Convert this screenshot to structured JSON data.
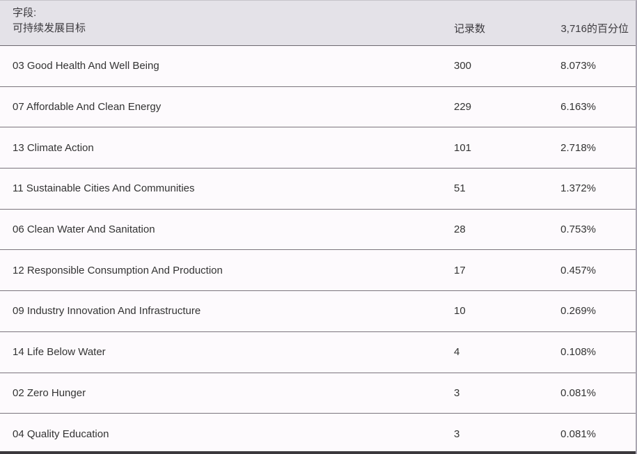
{
  "header": {
    "field_label": "字段:",
    "field_value": "可持续发展目标",
    "records_label": "记录数",
    "percentile_label": "3,716的百分位"
  },
  "rows": [
    {
      "label": "03 Good Health And Well Being",
      "records": "300",
      "percent": "8.073%"
    },
    {
      "label": "07 Affordable And Clean Energy",
      "records": "229",
      "percent": "6.163%"
    },
    {
      "label": "13 Climate Action",
      "records": "101",
      "percent": "2.718%"
    },
    {
      "label": "11 Sustainable Cities And Communities",
      "records": "51",
      "percent": "1.372%"
    },
    {
      "label": "06 Clean Water And Sanitation",
      "records": "28",
      "percent": "0.753%"
    },
    {
      "label": "12 Responsible Consumption And Production",
      "records": "17",
      "percent": "0.457%"
    },
    {
      "label": "09 Industry Innovation And Infrastructure",
      "records": "10",
      "percent": "0.269%"
    },
    {
      "label": "14 Life Below Water",
      "records": "4",
      "percent": "0.108%"
    },
    {
      "label": "02 Zero Hunger",
      "records": "3",
      "percent": "0.081%"
    },
    {
      "label": "04 Quality Education",
      "records": "3",
      "percent": "0.081%"
    }
  ],
  "colors": {
    "header_bg": "#e4e2e8",
    "row_bg": "#fdfafd",
    "header_text": "#3c3a3e",
    "row_text": "#333333",
    "header_border": "#6c6870",
    "row_border": "#7a747c",
    "bottom_bar": "#3b393d"
  }
}
